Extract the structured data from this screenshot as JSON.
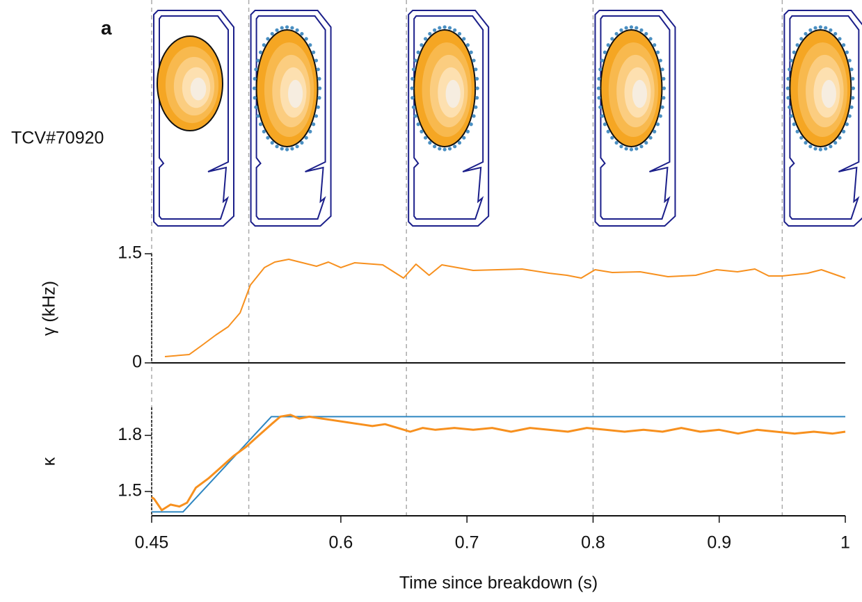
{
  "panel_label": "a",
  "shot_label": "TCV#70920",
  "snapshot_times": [
    0.45,
    0.527,
    0.652,
    0.8,
    0.95
  ],
  "chart_data": [
    {
      "type": "line",
      "ylabel": "γ (kHz)",
      "xlim": [
        0.45,
        1
      ],
      "ylim": [
        0,
        1.5
      ],
      "yticks": [
        0,
        1.5
      ],
      "series": [
        {
          "color": "#f7901e",
          "x": [
            0.4605,
            0.4798,
            0.4897,
            0.5008,
            0.5107,
            0.5201,
            0.5283,
            0.5394,
            0.5476,
            0.5587,
            0.5697,
            0.5807,
            0.5901,
            0.6,
            0.611,
            0.6332,
            0.6497,
            0.6596,
            0.67,
            0.6801,
            0.7049,
            0.7437,
            0.7656,
            0.7793,
            0.7906,
            0.8016,
            0.8152,
            0.8373,
            0.8594,
            0.8814,
            0.898,
            0.9145,
            0.9283,
            0.9393,
            0.95,
            0.97,
            0.981,
            1.0
          ],
          "values": [
            0.086,
            0.115,
            0.239,
            0.382,
            0.497,
            0.688,
            1.07,
            1.31,
            1.385,
            1.424,
            1.376,
            1.328,
            1.385,
            1.31,
            1.376,
            1.347,
            1.166,
            1.357,
            1.204,
            1.347,
            1.271,
            1.29,
            1.232,
            1.204,
            1.166,
            1.28,
            1.242,
            1.252,
            1.185,
            1.204,
            1.28,
            1.252,
            1.29,
            1.194,
            1.194,
            1.232,
            1.28,
            1.166
          ]
        }
      ]
    },
    {
      "type": "line",
      "ylabel": "κ",
      "xlabel": "Time since breakdown (s)",
      "xlim": [
        0.45,
        1
      ],
      "ylim": [
        1.37,
        1.95
      ],
      "xticks": [
        0.45,
        0.6,
        0.7,
        0.8,
        0.9,
        1
      ],
      "yticks": [
        1.5,
        1.8
      ],
      "series": [
        {
          "color": "#2e86c1",
          "x": [
            0.45,
            0.4748,
            0.5449,
            1.0
          ],
          "values": [
            1.391,
            1.391,
            1.9,
            1.9
          ]
        },
        {
          "color": "#f7901e",
          "x": [
            0.45,
            0.452,
            0.458,
            0.465,
            0.472,
            0.478,
            0.485,
            0.495,
            0.505,
            0.515,
            0.525,
            0.535,
            0.545,
            0.552,
            0.56,
            0.567,
            0.575,
            0.585,
            0.595,
            0.605,
            0.615,
            0.625,
            0.635,
            0.645,
            0.655,
            0.665,
            0.675,
            0.69,
            0.705,
            0.72,
            0.735,
            0.75,
            0.765,
            0.78,
            0.795,
            0.81,
            0.825,
            0.84,
            0.855,
            0.87,
            0.885,
            0.9,
            0.915,
            0.93,
            0.945,
            0.96,
            0.975,
            0.99,
            1.0
          ],
          "values": [
            1.47,
            1.46,
            1.4,
            1.43,
            1.42,
            1.44,
            1.52,
            1.57,
            1.63,
            1.69,
            1.74,
            1.8,
            1.86,
            1.9,
            1.91,
            1.89,
            1.9,
            1.89,
            1.88,
            1.87,
            1.86,
            1.85,
            1.86,
            1.84,
            1.82,
            1.84,
            1.83,
            1.84,
            1.83,
            1.84,
            1.82,
            1.84,
            1.83,
            1.82,
            1.84,
            1.83,
            1.82,
            1.83,
            1.82,
            1.84,
            1.82,
            1.83,
            1.81,
            1.83,
            1.82,
            1.81,
            1.82,
            1.81,
            1.82
          ]
        }
      ]
    }
  ]
}
